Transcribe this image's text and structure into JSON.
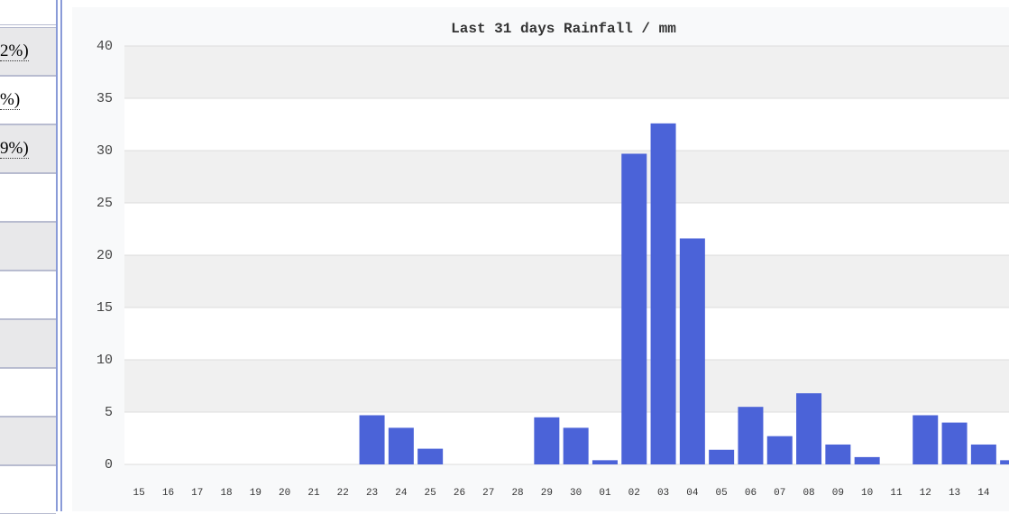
{
  "side_rows": [
    "2%)",
    "%)",
    "9%)"
  ],
  "chart_data": {
    "type": "bar",
    "title": "Last 31 days Rainfall / mm",
    "categories": [
      "15",
      "16",
      "17",
      "18",
      "19",
      "20",
      "21",
      "22",
      "23",
      "24",
      "25",
      "26",
      "27",
      "28",
      "29",
      "30",
      "01",
      "02",
      "03",
      "04",
      "05",
      "06",
      "07",
      "08",
      "09",
      "10",
      "11",
      "12",
      "13",
      "14",
      null
    ],
    "values": [
      0,
      0,
      0,
      0,
      0,
      0,
      0,
      0,
      4.7,
      3.5,
      1.5,
      0,
      0,
      0,
      4.5,
      3.5,
      0.4,
      29.7,
      32.6,
      21.6,
      1.4,
      5.5,
      2.7,
      6.8,
      1.9,
      0.7,
      0,
      4.7,
      4.0,
      1.9,
      0.4
    ],
    "color": "#4b63d8",
    "ylim": [
      0,
      40
    ],
    "yticks": [
      0,
      5,
      10,
      15,
      20,
      25,
      30,
      35,
      40
    ],
    "grid": true
  }
}
